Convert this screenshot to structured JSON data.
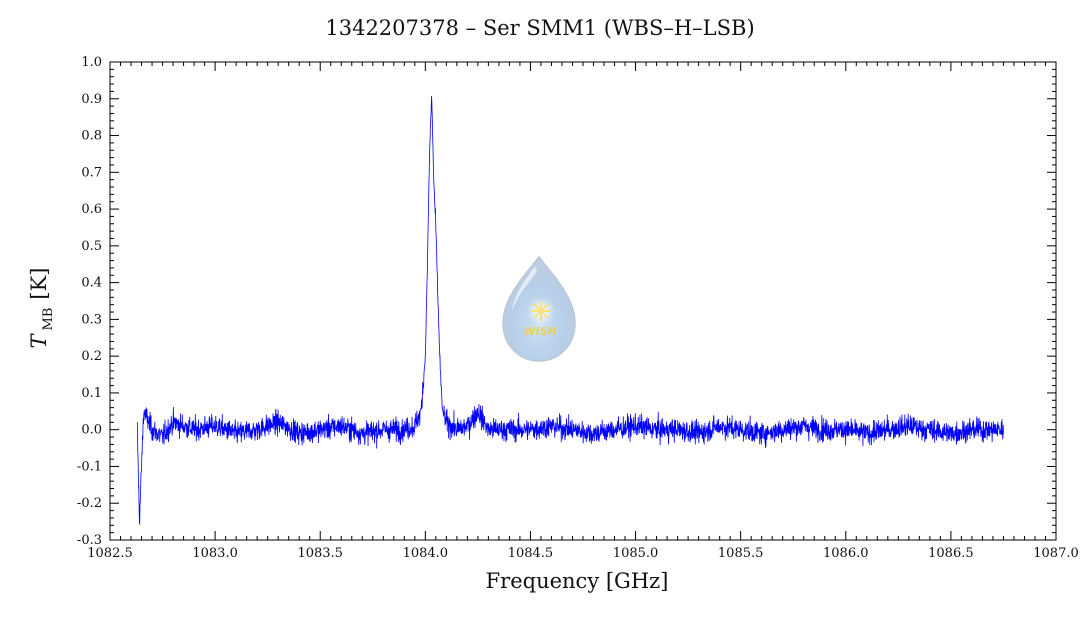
{
  "chart_data": {
    "type": "line",
    "title": "1342207378 – Ser SMM1 (WBS–H–LSB)",
    "xlabel": "Frequency [GHz]",
    "ylabel": {
      "main": "T",
      "sub": "MB",
      "unit": "[K]"
    },
    "xlim": [
      1082.5,
      1087.0
    ],
    "ylim": [
      -0.3,
      1.0
    ],
    "x_ticks": [
      "1082.5",
      "1083.0",
      "1083.5",
      "1084.0",
      "1084.5",
      "1085.0",
      "1085.5",
      "1086.0",
      "1086.5",
      "1087.0"
    ],
    "y_ticks": [
      "-0.3",
      "-0.2",
      "-0.1",
      "0.0",
      "0.1",
      "0.2",
      "0.3",
      "0.4",
      "0.5",
      "0.6",
      "0.7",
      "0.8",
      "0.9",
      "1.0"
    ],
    "grid": false,
    "series": [
      {
        "color": "#0000ff",
        "x": [
          1082.63,
          1082.64,
          1082.66,
          1082.7,
          1082.75,
          1082.8,
          1082.9,
          1083.0,
          1083.1,
          1083.2,
          1083.3,
          1083.4,
          1083.5,
          1083.6,
          1083.7,
          1083.8,
          1083.9,
          1083.95,
          1083.98,
          1084.0,
          1084.01,
          1084.02,
          1084.03,
          1084.04,
          1084.05,
          1084.06,
          1084.07,
          1084.08,
          1084.1,
          1084.15,
          1084.2,
          1084.25,
          1084.3,
          1084.4,
          1084.5,
          1084.6,
          1084.7,
          1084.8,
          1084.9,
          1085.0,
          1085.1,
          1085.2,
          1085.3,
          1085.4,
          1085.5,
          1085.6,
          1085.7,
          1085.8,
          1085.9,
          1086.0,
          1086.1,
          1086.2,
          1086.3,
          1086.4,
          1086.5,
          1086.6,
          1086.7,
          1086.75
        ],
        "y": [
          0.0,
          -0.25,
          0.05,
          0.0,
          -0.02,
          0.02,
          0.0,
          0.01,
          -0.01,
          0.0,
          0.02,
          -0.01,
          0.0,
          0.01,
          -0.01,
          0.0,
          0.0,
          0.01,
          0.05,
          0.2,
          0.45,
          0.75,
          0.91,
          0.68,
          0.55,
          0.35,
          0.18,
          0.06,
          0.02,
          0.0,
          0.01,
          0.05,
          0.0,
          0.0,
          0.0,
          0.01,
          0.0,
          -0.01,
          0.0,
          0.01,
          0.0,
          0.0,
          -0.01,
          0.01,
          0.0,
          -0.01,
          0.0,
          0.01,
          0.0,
          0.0,
          -0.01,
          0.0,
          0.01,
          0.0,
          -0.01,
          0.0,
          0.0,
          0.0
        ],
        "noise_rms": 0.03
      }
    ]
  },
  "watermark": {
    "label": "WISH"
  }
}
